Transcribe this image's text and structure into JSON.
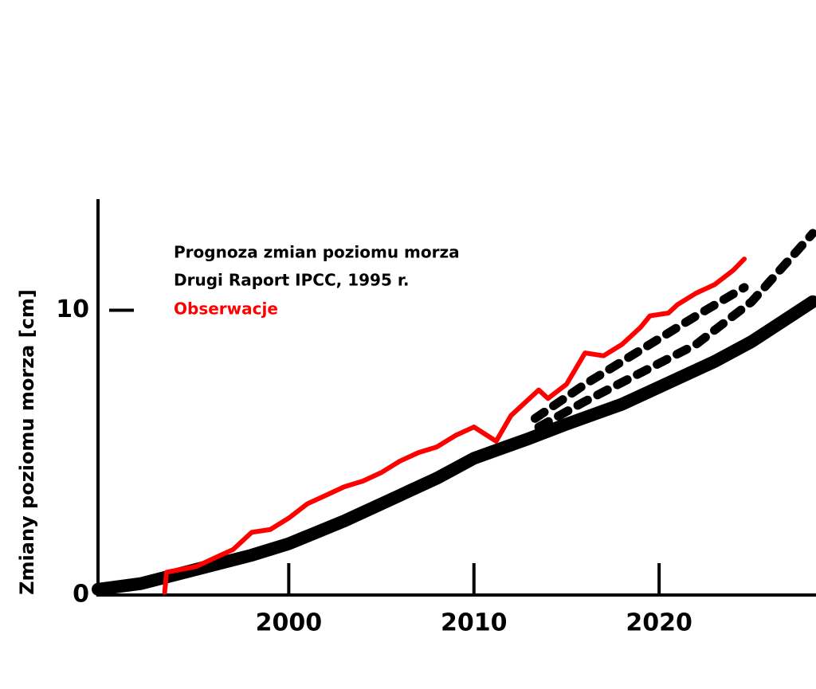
{
  "chart_data": {
    "type": "line",
    "legend_title": "Prognoza zmian poziomu morza",
    "y_label": "Zmiany poziomu morza [cm]",
    "xlim": [
      1989.7,
      2028.3
    ],
    "xticks": [
      2000,
      2010,
      2020
    ],
    "ylim": [
      0,
      13.9
    ],
    "yticks": [
      0,
      10
    ],
    "series": [
      {
        "name": "Drugi Raport IPCC, 1995 r.",
        "color": "#000000",
        "dash": false,
        "x": [
          1989.7,
          1992,
          1995,
          1998,
          2000,
          2003,
          2005,
          2008,
          2010,
          2013,
          2015,
          2018,
          2020,
          2023,
          2025,
          2028.3
        ],
        "values": [
          0.2,
          0.4,
          0.9,
          1.4,
          1.8,
          2.6,
          3.2,
          4.1,
          4.8,
          5.5,
          6.0,
          6.7,
          7.3,
          8.2,
          8.9,
          10.3
        ]
      },
      {
        "color": "#000000",
        "dash": true,
        "x": [
          2013.3,
          2016,
          2019,
          2022,
          2024.6
        ],
        "values": [
          6.2,
          7.4,
          8.6,
          9.8,
          10.8
        ]
      },
      {
        "color": "#000000",
        "dash": true,
        "x": [
          2013.5,
          2016,
          2019,
          2022,
          2025,
          2028.3
        ],
        "values": [
          5.9,
          6.8,
          7.8,
          8.8,
          10.3,
          12.7
        ]
      },
      {
        "name": "Obserwacje",
        "color": "#ff0000",
        "dash": false,
        "x": [
          1993.3,
          1993.4,
          1995,
          1996,
          1997,
          1998,
          1999,
          2000,
          2001,
          2002,
          2003,
          2004,
          2005,
          2006,
          2007,
          2008,
          2009,
          2010,
          2011.2,
          2012,
          2012.5,
          2013.5,
          2014,
          2015,
          2016,
          2017,
          2018,
          2019,
          2019.5,
          2020.5,
          2021,
          2022,
          2023,
          2024,
          2024.6
        ],
        "values": [
          0.1,
          0.8,
          1.0,
          1.3,
          1.6,
          2.2,
          2.3,
          2.7,
          3.2,
          3.5,
          3.8,
          4.0,
          4.3,
          4.7,
          5.0,
          5.2,
          5.6,
          5.9,
          5.4,
          6.3,
          6.6,
          7.2,
          6.9,
          7.4,
          8.5,
          8.4,
          8.8,
          9.4,
          9.8,
          9.9,
          10.2,
          10.6,
          10.9,
          11.4,
          11.8
        ]
      }
    ]
  }
}
